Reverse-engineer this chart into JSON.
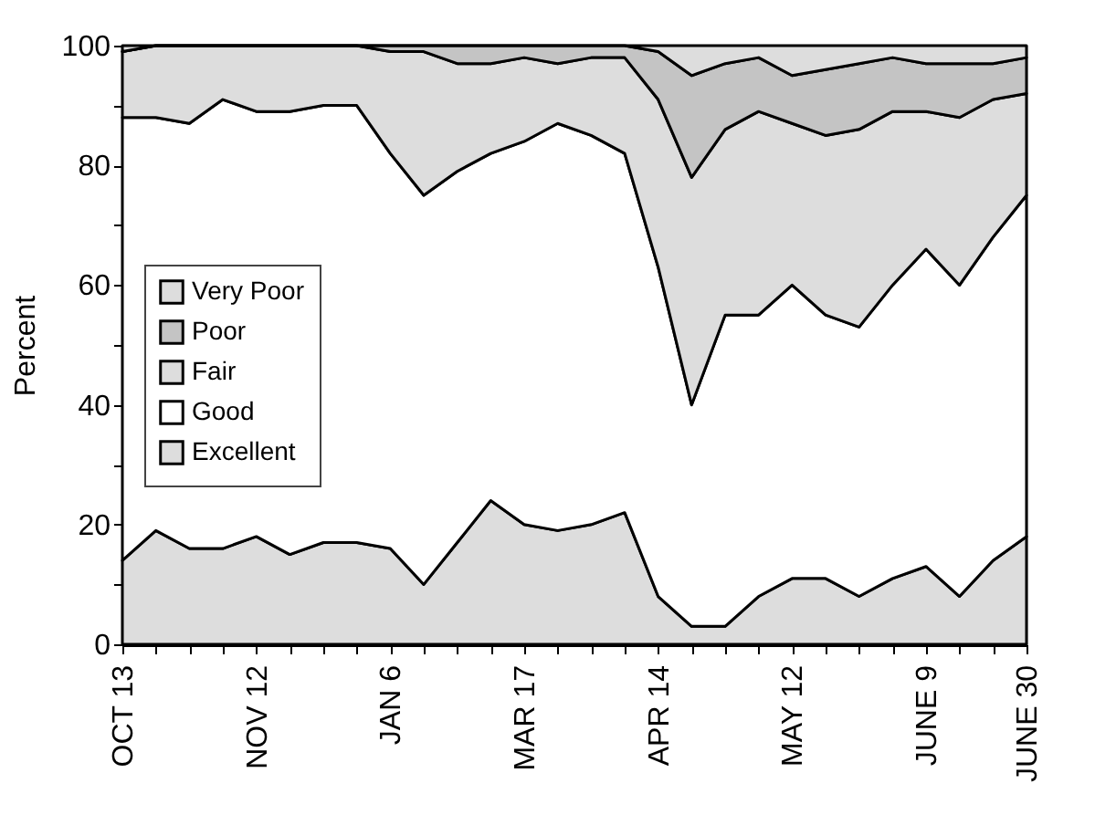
{
  "chart_data": {
    "type": "area",
    "stacked": true,
    "ylabel": "Percent",
    "categories": [
      "OCT 13",
      null,
      null,
      null,
      "NOV 12",
      null,
      null,
      null,
      "JAN 6",
      null,
      null,
      null,
      "MAR 17",
      null,
      null,
      null,
      "APR 14",
      null,
      null,
      null,
      "MAY 12",
      null,
      null,
      null,
      "JUNE 9",
      null,
      null,
      "JUNE 30"
    ],
    "series": [
      {
        "name": "Excellent",
        "color": "#dddddd",
        "values": [
          14,
          19,
          16,
          16,
          18,
          15,
          17,
          17,
          16,
          10,
          17,
          24,
          20,
          19,
          20,
          22,
          8,
          3,
          3,
          8,
          11,
          11,
          8,
          11,
          13,
          8,
          14,
          18
        ]
      },
      {
        "name": "Good",
        "color": "#ffffff",
        "values": [
          74,
          69,
          71,
          75,
          71,
          74,
          73,
          73,
          66,
          65,
          62,
          58,
          64,
          68,
          65,
          60,
          55,
          37,
          52,
          47,
          49,
          44,
          45,
          49,
          53,
          52,
          54,
          57
        ]
      },
      {
        "name": "Fair",
        "color": "#dddddd",
        "values": [
          11,
          12,
          13,
          9,
          11,
          11,
          10,
          10,
          17,
          24,
          18,
          15,
          14,
          10,
          13,
          16,
          28,
          38,
          31,
          34,
          27,
          30,
          33,
          29,
          23,
          28,
          23,
          17
        ]
      },
      {
        "name": "Poor",
        "color": "#c4c4c4",
        "values": [
          0,
          0,
          0,
          0,
          0,
          0,
          0,
          0,
          1,
          1,
          3,
          3,
          2,
          3,
          2,
          2,
          8,
          17,
          11,
          9,
          8,
          11,
          11,
          9,
          8,
          9,
          6,
          6
        ]
      },
      {
        "name": "Very Poor",
        "color": "#dddddd",
        "values": [
          1,
          0,
          0,
          0,
          0,
          0,
          0,
          0,
          0,
          0,
          0,
          0,
          0,
          0,
          0,
          0,
          1,
          5,
          3,
          2,
          5,
          4,
          3,
          2,
          3,
          3,
          3,
          2
        ]
      }
    ],
    "ylim": [
      0,
      100
    ],
    "yticks": [
      0,
      {
        "value": 10,
        "label": null
      },
      20,
      {
        "value": 30,
        "label": null
      },
      40,
      {
        "value": 50,
        "label": null
      },
      60,
      {
        "value": 70,
        "label": null
      },
      80,
      {
        "value": 90,
        "label": null
      },
      100
    ],
    "legend": "left"
  }
}
